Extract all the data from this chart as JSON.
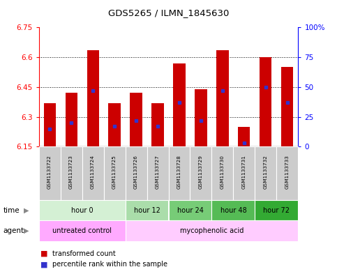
{
  "title": "GDS5265 / ILMN_1845630",
  "samples": [
    "GSM1133722",
    "GSM1133723",
    "GSM1133724",
    "GSM1133725",
    "GSM1133726",
    "GSM1133727",
    "GSM1133728",
    "GSM1133729",
    "GSM1133730",
    "GSM1133731",
    "GSM1133732",
    "GSM1133733"
  ],
  "bar_tops": [
    6.37,
    6.42,
    6.635,
    6.37,
    6.42,
    6.37,
    6.57,
    6.44,
    6.635,
    6.25,
    6.6,
    6.55
  ],
  "bar_bottom": 6.15,
  "blue_pct": [
    15,
    20,
    47,
    17,
    22,
    17,
    37,
    22,
    47,
    3,
    50,
    37
  ],
  "ylim_left": [
    6.15,
    6.75
  ],
  "ylim_right": [
    0,
    100
  ],
  "yticks_left": [
    6.15,
    6.3,
    6.45,
    6.6,
    6.75
  ],
  "yticks_right": [
    0,
    25,
    50,
    75,
    100
  ],
  "ytick_labels_right": [
    "0",
    "25",
    "50",
    "75",
    "100%"
  ],
  "bar_color": "#cc0000",
  "blue_color": "#3333cc",
  "time_groups": [
    {
      "label": "hour 0",
      "start": 0,
      "end": 4,
      "color": "#d4f0d4"
    },
    {
      "label": "hour 12",
      "start": 4,
      "end": 6,
      "color": "#aaddaa"
    },
    {
      "label": "hour 24",
      "start": 6,
      "end": 8,
      "color": "#77cc77"
    },
    {
      "label": "hour 48",
      "start": 8,
      "end": 10,
      "color": "#55bb55"
    },
    {
      "label": "hour 72",
      "start": 10,
      "end": 12,
      "color": "#33aa33"
    }
  ],
  "agent_groups": [
    {
      "label": "untreated control",
      "start": 0,
      "end": 4,
      "color": "#ffaaff"
    },
    {
      "label": "mycophenolic acid",
      "start": 4,
      "end": 12,
      "color": "#ffccff"
    }
  ],
  "legend_red_label": "transformed count",
  "legend_blue_label": "percentile rank within the sample",
  "bar_width": 0.55,
  "sample_box_color": "#cccccc",
  "spine_color": "#000000"
}
